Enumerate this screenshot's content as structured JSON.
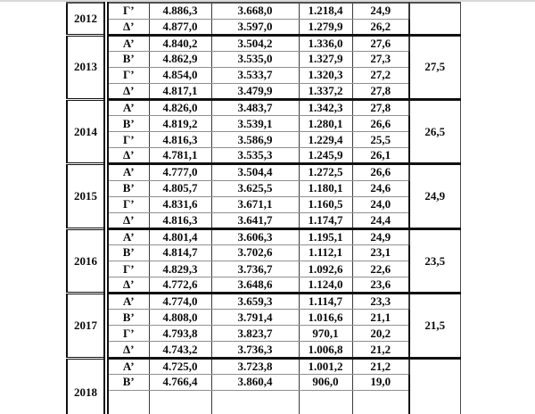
{
  "colors": {
    "table_border": "#111111",
    "vertical_line": "#3a3a3a",
    "row_divider": "#8f8f8f",
    "top_strip": "#d9d9d9",
    "text": "#0a0a0a",
    "background": "#ffffff"
  },
  "table": {
    "blocks": [
      {
        "year": "2012",
        "partial_top": true,
        "annual": "",
        "rows": [
          [
            "Γ’",
            "4.886,3",
            "3.668,0",
            "1.218,4",
            "24,9"
          ],
          [
            "Δ’",
            "4.877,0",
            "3.597,0",
            "1.279,9",
            "26,2"
          ]
        ]
      },
      {
        "year": "2013",
        "annual": "27,5",
        "rows": [
          [
            "Α’",
            "4.840,2",
            "3.504,2",
            "1.336,0",
            "27,6"
          ],
          [
            "Β’",
            "4.862,9",
            "3.535,0",
            "1.327,9",
            "27,3"
          ],
          [
            "Γ’",
            "4.854,0",
            "3.533,7",
            "1.320,3",
            "27,2"
          ],
          [
            "Δ’",
            "4.817,1",
            "3.479,9",
            "1.337,2",
            "27,8"
          ]
        ]
      },
      {
        "year": "2014",
        "annual": "26,5",
        "rows": [
          [
            "Α’",
            "4.826,0",
            "3.483,7",
            "1.342,3",
            "27,8"
          ],
          [
            "Β’",
            "4.819,2",
            "3.539,1",
            "1.280,1",
            "26,6"
          ],
          [
            "Γ’",
            "4.816,3",
            "3.586,9",
            "1.229,4",
            "25,5"
          ],
          [
            "Δ’",
            "4.781,1",
            "3.535,3",
            "1.245,9",
            "26,1"
          ]
        ]
      },
      {
        "year": "2015",
        "annual": "24,9",
        "rows": [
          [
            "Α’",
            "4.777,0",
            "3.504,4",
            "1.272,5",
            "26,6"
          ],
          [
            "Β’",
            "4.805,7",
            "3.625,5",
            "1.180,1",
            "24,6"
          ],
          [
            "Γ’",
            "4.831,6",
            "3.671,1",
            "1.160,5",
            "24,0"
          ],
          [
            "Δ’",
            "4.816,3",
            "3.641,7",
            "1.174,7",
            "24,4"
          ]
        ]
      },
      {
        "year": "2016",
        "annual": "23,5",
        "rows": [
          [
            "Α’",
            "4.801,4",
            "3.606,3",
            "1.195,1",
            "24,9"
          ],
          [
            "Β’",
            "4.814,7",
            "3.702,6",
            "1.112,1",
            "23,1"
          ],
          [
            "Γ’",
            "4.829,3",
            "3.736,7",
            "1.092,6",
            "22,6"
          ],
          [
            "Δ’",
            "4.772,6",
            "3.648,6",
            "1.124,0",
            "23,6"
          ]
        ]
      },
      {
        "year": "2017",
        "annual": "21,5",
        "rows": [
          [
            "Α’",
            "4.774,0",
            "3.659,3",
            "1.114,7",
            "23,3"
          ],
          [
            "Β’",
            "4.808,0",
            "3.791,4",
            "1.016,6",
            "21,1"
          ],
          [
            "Γ’",
            "4.793,8",
            "3.823,7",
            "970,1",
            "20,2"
          ],
          [
            "Δ’",
            "4.743,2",
            "3.736,3",
            "1.006,8",
            "21,2"
          ]
        ]
      },
      {
        "year": "2018",
        "partial_bottom": true,
        "annual": "",
        "rows": [
          [
            "Α’",
            "4.725,0",
            "3.723,8",
            "1.001,2",
            "21,2"
          ],
          [
            "Β’",
            "4.766,4",
            "3.860,4",
            "906,0",
            "19,0"
          ]
        ]
      }
    ]
  }
}
